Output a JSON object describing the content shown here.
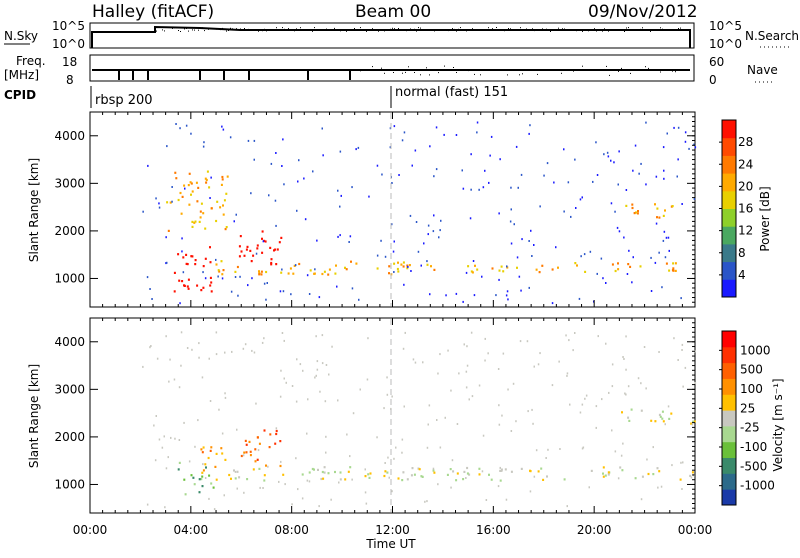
{
  "header": {
    "station": "Halley (fitACF)",
    "beam": "Beam 00",
    "date": "09/Nov/2012"
  },
  "top_panels": {
    "nsky_label": "N.Sky",
    "nsky_ticks": [
      "10^5",
      "10^0"
    ],
    "nsearch_label": "N.Search",
    "nsearch_ticks": [
      "10^5",
      "10^0"
    ],
    "freq_label": "Freq.",
    "freq_unit": "[MHz]",
    "freq_ticks": [
      "18",
      "8"
    ],
    "nave_label": "Nave",
    "nave_ticks": [
      "60",
      "0"
    ],
    "cpid_label": "CPID",
    "cpid_segments": [
      {
        "start_h": 0.0,
        "label": "rbsp 200"
      },
      {
        "start_h": 12.0,
        "label": "normal (fast) 151"
      }
    ]
  },
  "chart_data": [
    {
      "type": "heatmap",
      "name": "power",
      "ylabel": "Slant Range [km]",
      "xlabel": "Time UT",
      "xlim": [
        0,
        24
      ],
      "ylim": [
        400,
        4500
      ],
      "yticks": [
        "1000",
        "2000",
        "3000",
        "4000"
      ],
      "xticks": [
        "00:00",
        "04:00",
        "08:00",
        "12:00",
        "16:00",
        "20:00",
        "00:00"
      ],
      "colorbar": {
        "label": "Power [dB]",
        "ticks": [
          "4",
          "8",
          "12",
          "16",
          "20",
          "24",
          "28"
        ],
        "colors": [
          "#1a1aff",
          "#2a55c8",
          "#3a7a8a",
          "#4aa860",
          "#8ed02a",
          "#e8d000",
          "#ffaa00",
          "#ff7a00",
          "#ff4a00",
          "#ff1000"
        ]
      },
      "echo_regions": [
        {
          "t0": 3.3,
          "t1": 4.9,
          "r0": 700,
          "r1": 1700,
          "level": 18
        },
        {
          "t0": 5.9,
          "t1": 7.6,
          "r0": 1300,
          "r1": 2100,
          "level": 14
        },
        {
          "t0": 4.7,
          "t1": 12.5,
          "r0": 1100,
          "r1": 1400,
          "level": 6
        },
        {
          "t0": 12.5,
          "t1": 24.0,
          "r0": 1150,
          "r1": 1350,
          "level": 6
        },
        {
          "t0": 21.0,
          "t1": 24.0,
          "r0": 2300,
          "r1": 2600,
          "level": 6
        },
        {
          "t0": 3.0,
          "t1": 5.5,
          "r0": 2000,
          "r1": 3300,
          "level": 6
        }
      ]
    },
    {
      "type": "heatmap",
      "name": "velocity",
      "ylabel": "Slant Range [km]",
      "xlabel": "Time UT",
      "xlim": [
        0,
        24
      ],
      "ylim": [
        400,
        4500
      ],
      "yticks": [
        "1000",
        "2000",
        "3000",
        "4000"
      ],
      "xticks": [
        "00:00",
        "04:00",
        "08:00",
        "12:00",
        "16:00",
        "20:00",
        "00:00"
      ],
      "colorbar": {
        "label": "Velocity [m s⁻¹]",
        "ticks": [
          "1000",
          "500",
          "100",
          "25",
          "-25",
          "-100",
          "-500",
          "-1000"
        ],
        "colors": [
          "#1a3aa8",
          "#2c6a8a",
          "#3a8a6a",
          "#6ac03a",
          "#a8d890",
          "#c8c8c0",
          "#ffc000",
          "#ff9000",
          "#ff6000",
          "#ff3000",
          "#ff0000"
        ]
      },
      "echo_regions": [
        {
          "t0": 3.3,
          "t1": 4.9,
          "r0": 800,
          "r1": 1500,
          "level": 3
        },
        {
          "t0": 4.2,
          "t1": 5.4,
          "r0": 1200,
          "r1": 1900,
          "level": 7
        },
        {
          "t0": 5.9,
          "t1": 7.6,
          "r0": 1400,
          "r1": 2200,
          "level": 8
        },
        {
          "t0": 4.7,
          "t1": 24.0,
          "r0": 1100,
          "r1": 1400,
          "level": 5
        },
        {
          "t0": 21.0,
          "t1": 24.0,
          "r0": 2300,
          "r1": 2600,
          "level": 5
        }
      ]
    }
  ]
}
